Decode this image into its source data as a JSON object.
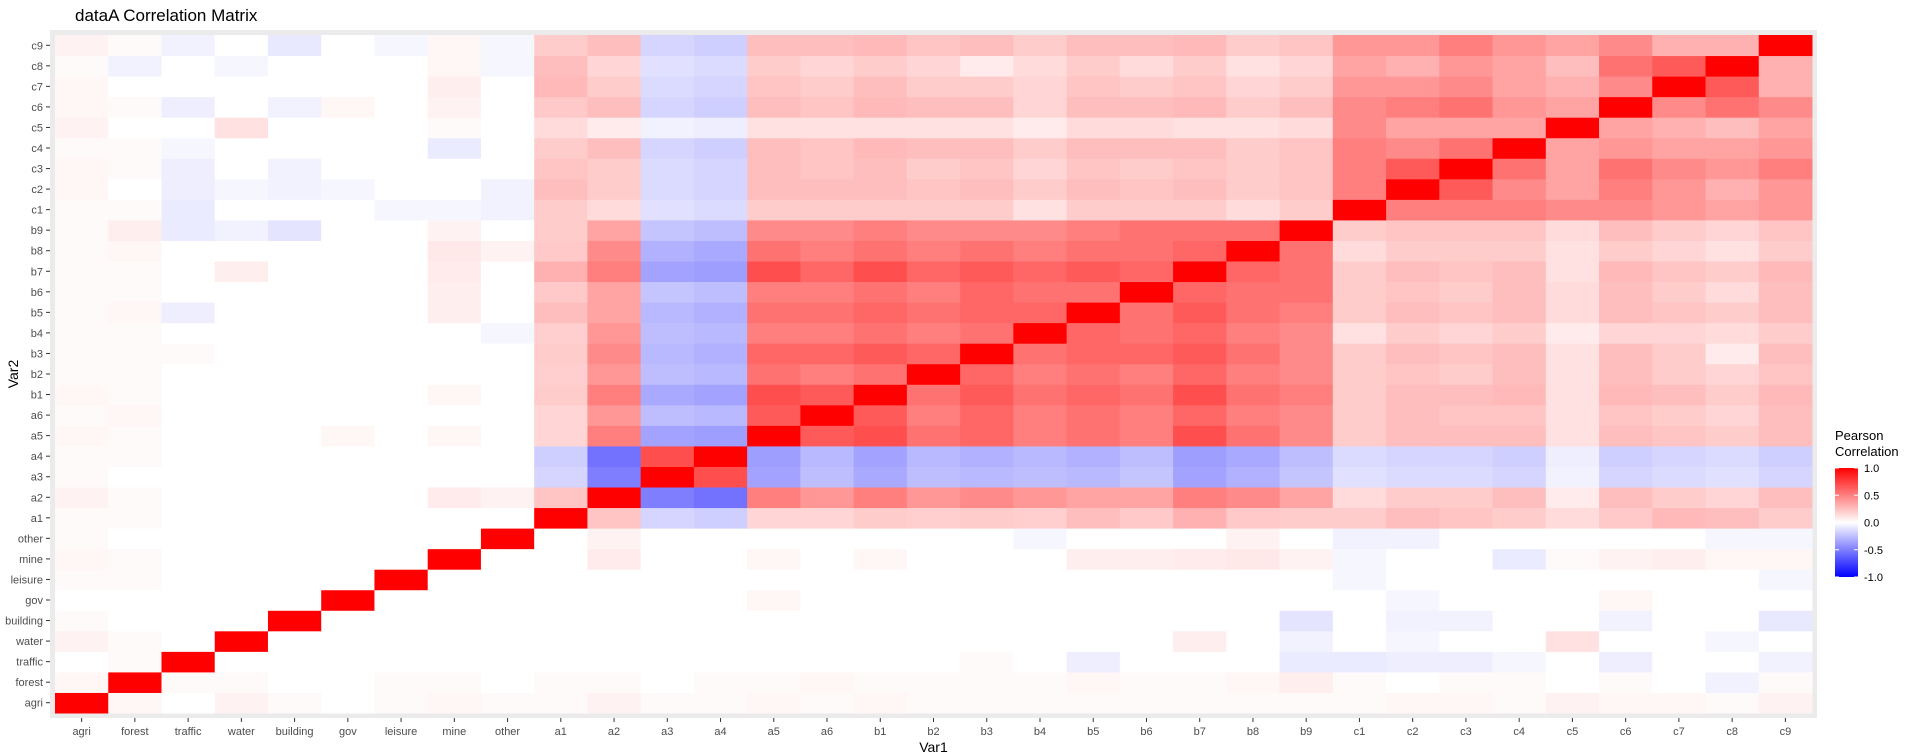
{
  "chart_data": {
    "type": "heatmap",
    "title": "dataA Correlation Matrix",
    "xlabel": "Var1",
    "ylabel": "Var2",
    "labels": [
      "agri",
      "forest",
      "traffic",
      "water",
      "building",
      "gov",
      "leisure",
      "mine",
      "other",
      "a1",
      "a2",
      "a3",
      "a4",
      "a5",
      "a6",
      "b1",
      "b2",
      "b3",
      "b4",
      "b5",
      "b6",
      "b7",
      "b8",
      "b9",
      "c1",
      "c2",
      "c3",
      "c4",
      "c5",
      "c6",
      "c7",
      "c8",
      "c9"
    ],
    "legend": {
      "title_lines": [
        "Pearson",
        "Correlation"
      ],
      "ticks": [
        1.0,
        0.5,
        0.0,
        -0.5,
        -1.0
      ],
      "tick_labels": [
        "1.0",
        "0.5",
        "0.0",
        "-0.5",
        "-1.0"
      ],
      "low_color": "#0000ff",
      "mid_color": "#ffffff",
      "high_color": "#ff0000",
      "limits": [
        -1,
        1
      ]
    },
    "background_color": "#ebebeb",
    "grid": true,
    "matrix": [
      [
        1.0,
        0.02,
        0.0,
        0.03,
        0.01,
        0.0,
        0.01,
        0.02,
        0.01,
        0.01,
        0.03,
        0.01,
        0.01,
        0.02,
        0.01,
        0.02,
        0.01,
        0.01,
        0.01,
        0.01,
        0.01,
        0.01,
        0.01,
        0.01,
        0.01,
        0.02,
        0.02,
        0.01,
        0.03,
        0.02,
        0.02,
        0.01,
        0.03
      ],
      [
        0.02,
        1.0,
        0.01,
        0.01,
        0.0,
        0.0,
        0.01,
        0.01,
        0.0,
        0.01,
        0.01,
        0.0,
        0.01,
        0.01,
        0.02,
        0.01,
        0.01,
        0.01,
        0.01,
        0.02,
        0.01,
        0.01,
        0.02,
        0.04,
        0.01,
        0.0,
        0.01,
        0.01,
        0.0,
        0.01,
        0.0,
        -0.03,
        0.01
      ],
      [
        0.0,
        0.01,
        1.0,
        0.0,
        0.0,
        0.0,
        0.0,
        0.0,
        0.0,
        0.0,
        0.0,
        0.0,
        0.0,
        0.0,
        0.0,
        0.0,
        0.0,
        0.01,
        0.0,
        -0.04,
        0.0,
        0.0,
        0.0,
        -0.05,
        -0.05,
        -0.04,
        -0.04,
        -0.02,
        0.0,
        -0.04,
        0.0,
        0.0,
        -0.03
      ],
      [
        0.03,
        0.01,
        0.0,
        1.0,
        0.0,
        0.0,
        0.0,
        0.0,
        0.0,
        0.0,
        0.0,
        0.0,
        0.0,
        0.0,
        0.0,
        0.0,
        0.0,
        0.0,
        0.0,
        0.0,
        0.0,
        0.04,
        0.0,
        -0.03,
        0.0,
        -0.02,
        0.0,
        0.0,
        0.08,
        0.0,
        0.0,
        -0.02,
        0.0
      ],
      [
        0.01,
        0.0,
        0.0,
        0.0,
        1.0,
        0.0,
        0.0,
        0.0,
        0.0,
        0.0,
        0.0,
        0.0,
        0.0,
        0.0,
        0.0,
        0.0,
        0.0,
        0.0,
        0.0,
        0.0,
        0.0,
        0.0,
        0.0,
        -0.07,
        0.0,
        -0.03,
        -0.03,
        0.0,
        0.0,
        -0.03,
        0.0,
        0.0,
        -0.06
      ],
      [
        0.0,
        0.0,
        0.0,
        0.0,
        0.0,
        1.0,
        0.0,
        0.0,
        0.0,
        0.0,
        0.0,
        0.0,
        0.0,
        0.02,
        0.0,
        0.0,
        0.0,
        0.0,
        0.0,
        0.0,
        0.0,
        0.0,
        0.0,
        0.0,
        0.0,
        -0.02,
        0.0,
        0.0,
        0.0,
        0.02,
        0.0,
        0.0,
        0.0
      ],
      [
        0.01,
        0.01,
        0.0,
        0.0,
        0.0,
        0.0,
        1.0,
        0.0,
        0.0,
        0.0,
        0.0,
        0.0,
        0.0,
        0.0,
        0.0,
        0.0,
        0.0,
        0.0,
        0.0,
        0.0,
        0.0,
        0.0,
        0.0,
        0.0,
        -0.02,
        0.0,
        0.0,
        0.0,
        0.0,
        0.0,
        0.0,
        0.0,
        -0.02
      ],
      [
        0.02,
        0.01,
        0.0,
        0.0,
        0.0,
        0.0,
        0.0,
        1.0,
        0.0,
        0.0,
        0.05,
        0.0,
        0.0,
        0.02,
        0.0,
        0.02,
        0.0,
        0.0,
        0.0,
        0.04,
        0.04,
        0.05,
        0.06,
        0.03,
        -0.02,
        0.0,
        0.0,
        -0.05,
        0.01,
        0.03,
        0.04,
        0.02,
        0.02
      ],
      [
        0.01,
        0.0,
        0.0,
        0.0,
        0.0,
        0.0,
        0.0,
        0.0,
        1.0,
        0.0,
        0.03,
        0.0,
        0.0,
        0.0,
        0.0,
        0.0,
        0.0,
        0.0,
        -0.02,
        0.0,
        0.0,
        0.0,
        0.03,
        0.0,
        -0.03,
        -0.03,
        0.0,
        0.0,
        0.0,
        0.0,
        0.0,
        -0.02,
        -0.02
      ],
      [
        0.01,
        0.01,
        0.0,
        0.0,
        0.0,
        0.0,
        0.0,
        0.0,
        0.0,
        1.0,
        0.18,
        -0.12,
        -0.14,
        0.12,
        0.12,
        0.15,
        0.14,
        0.15,
        0.14,
        0.2,
        0.16,
        0.25,
        0.16,
        0.15,
        0.15,
        0.2,
        0.18,
        0.15,
        0.1,
        0.16,
        0.22,
        0.2,
        0.15
      ],
      [
        0.03,
        0.01,
        0.0,
        0.0,
        0.0,
        0.0,
        0.0,
        0.05,
        0.03,
        0.18,
        1.0,
        -0.45,
        -0.5,
        0.45,
        0.35,
        0.45,
        0.35,
        0.4,
        0.35,
        0.3,
        0.3,
        0.45,
        0.4,
        0.3,
        0.1,
        0.15,
        0.15,
        0.2,
        0.05,
        0.2,
        0.15,
        0.12,
        0.2
      ],
      [
        0.01,
        0.0,
        0.0,
        0.0,
        0.0,
        0.0,
        0.0,
        0.0,
        0.0,
        -0.12,
        -0.45,
        1.0,
        0.65,
        -0.3,
        -0.2,
        -0.28,
        -0.2,
        -0.22,
        -0.2,
        -0.22,
        -0.18,
        -0.3,
        -0.25,
        -0.18,
        -0.08,
        -0.1,
        -0.1,
        -0.12,
        -0.03,
        -0.12,
        -0.1,
        -0.08,
        -0.12
      ],
      [
        0.01,
        0.01,
        0.0,
        0.0,
        0.0,
        0.0,
        0.0,
        0.0,
        0.0,
        -0.14,
        -0.5,
        0.65,
        1.0,
        -0.32,
        -0.22,
        -0.3,
        -0.22,
        -0.25,
        -0.22,
        -0.25,
        -0.2,
        -0.32,
        -0.28,
        -0.2,
        -0.1,
        -0.12,
        -0.12,
        -0.14,
        -0.04,
        -0.14,
        -0.12,
        -0.1,
        -0.14
      ],
      [
        0.02,
        0.01,
        0.0,
        0.0,
        0.0,
        0.02,
        0.0,
        0.02,
        0.0,
        0.12,
        0.45,
        -0.3,
        -0.32,
        1.0,
        0.6,
        0.65,
        0.5,
        0.55,
        0.45,
        0.5,
        0.45,
        0.65,
        0.5,
        0.4,
        0.15,
        0.2,
        0.2,
        0.2,
        0.08,
        0.2,
        0.18,
        0.15,
        0.2
      ],
      [
        0.01,
        0.02,
        0.0,
        0.0,
        0.0,
        0.0,
        0.0,
        0.0,
        0.0,
        0.12,
        0.35,
        -0.2,
        -0.22,
        0.6,
        1.0,
        0.6,
        0.45,
        0.55,
        0.45,
        0.5,
        0.45,
        0.55,
        0.45,
        0.4,
        0.15,
        0.2,
        0.18,
        0.18,
        0.08,
        0.18,
        0.15,
        0.12,
        0.2
      ],
      [
        0.02,
        0.01,
        0.0,
        0.0,
        0.0,
        0.0,
        0.0,
        0.02,
        0.0,
        0.15,
        0.45,
        -0.28,
        -0.3,
        0.65,
        0.6,
        1.0,
        0.5,
        0.6,
        0.5,
        0.55,
        0.5,
        0.65,
        0.5,
        0.45,
        0.15,
        0.2,
        0.2,
        0.22,
        0.08,
        0.22,
        0.2,
        0.15,
        0.22
      ],
      [
        0.01,
        0.01,
        0.0,
        0.0,
        0.0,
        0.0,
        0.0,
        0.0,
        0.0,
        0.14,
        0.35,
        -0.2,
        -0.22,
        0.5,
        0.45,
        0.5,
        1.0,
        0.55,
        0.45,
        0.5,
        0.45,
        0.55,
        0.45,
        0.4,
        0.15,
        0.18,
        0.15,
        0.2,
        0.08,
        0.2,
        0.15,
        0.12,
        0.18
      ],
      [
        0.01,
        0.01,
        0.01,
        0.0,
        0.0,
        0.0,
        0.0,
        0.0,
        0.0,
        0.15,
        0.4,
        -0.22,
        -0.25,
        0.55,
        0.55,
        0.6,
        0.55,
        1.0,
        0.5,
        0.55,
        0.55,
        0.6,
        0.5,
        0.4,
        0.15,
        0.2,
        0.18,
        0.2,
        0.08,
        0.2,
        0.15,
        0.05,
        0.2
      ],
      [
        0.01,
        0.01,
        0.0,
        0.0,
        0.0,
        0.0,
        0.0,
        0.0,
        -0.02,
        0.14,
        0.35,
        -0.2,
        -0.22,
        0.45,
        0.45,
        0.5,
        0.45,
        0.5,
        1.0,
        0.55,
        0.5,
        0.55,
        0.45,
        0.4,
        0.08,
        0.15,
        0.12,
        0.15,
        0.05,
        0.12,
        0.12,
        0.1,
        0.15
      ],
      [
        0.01,
        0.02,
        -0.04,
        0.0,
        0.0,
        0.0,
        0.0,
        0.04,
        0.0,
        0.2,
        0.3,
        -0.22,
        -0.25,
        0.5,
        0.5,
        0.55,
        0.5,
        0.55,
        0.55,
        1.0,
        0.5,
        0.6,
        0.5,
        0.45,
        0.15,
        0.2,
        0.18,
        0.2,
        0.1,
        0.2,
        0.18,
        0.15,
        0.2
      ],
      [
        0.01,
        0.01,
        0.0,
        0.0,
        0.0,
        0.0,
        0.0,
        0.04,
        0.0,
        0.16,
        0.3,
        -0.18,
        -0.2,
        0.45,
        0.45,
        0.5,
        0.45,
        0.55,
        0.5,
        0.5,
        1.0,
        0.55,
        0.5,
        0.5,
        0.15,
        0.18,
        0.15,
        0.2,
        0.1,
        0.2,
        0.15,
        0.1,
        0.2
      ],
      [
        0.01,
        0.01,
        0.0,
        0.04,
        0.0,
        0.0,
        0.0,
        0.05,
        0.0,
        0.25,
        0.45,
        -0.3,
        -0.32,
        0.65,
        0.55,
        0.65,
        0.55,
        0.6,
        0.55,
        0.6,
        0.55,
        1.0,
        0.55,
        0.5,
        0.15,
        0.2,
        0.18,
        0.2,
        0.08,
        0.22,
        0.18,
        0.15,
        0.22
      ],
      [
        0.01,
        0.02,
        0.0,
        0.0,
        0.0,
        0.0,
        0.0,
        0.06,
        0.03,
        0.16,
        0.4,
        -0.25,
        -0.28,
        0.5,
        0.45,
        0.5,
        0.45,
        0.5,
        0.45,
        0.5,
        0.5,
        0.55,
        1.0,
        0.5,
        0.1,
        0.15,
        0.15,
        0.15,
        0.08,
        0.15,
        0.12,
        0.08,
        0.15
      ],
      [
        0.01,
        0.04,
        -0.05,
        -0.03,
        -0.07,
        0.0,
        0.0,
        0.03,
        0.0,
        0.15,
        0.3,
        -0.18,
        -0.2,
        0.4,
        0.4,
        0.45,
        0.4,
        0.4,
        0.4,
        0.45,
        0.5,
        0.5,
        0.5,
        1.0,
        0.15,
        0.18,
        0.18,
        0.18,
        0.1,
        0.2,
        0.15,
        0.12,
        0.18
      ],
      [
        0.01,
        0.01,
        -0.05,
        0.0,
        0.0,
        0.0,
        -0.02,
        -0.02,
        -0.03,
        0.15,
        0.1,
        -0.08,
        -0.1,
        0.15,
        0.15,
        0.15,
        0.15,
        0.15,
        0.08,
        0.15,
        0.15,
        0.15,
        0.1,
        0.15,
        1.0,
        0.45,
        0.45,
        0.45,
        0.4,
        0.4,
        0.35,
        0.3,
        0.35
      ],
      [
        0.02,
        0.0,
        -0.04,
        -0.02,
        -0.03,
        -0.02,
        0.0,
        0.0,
        -0.03,
        0.2,
        0.15,
        -0.1,
        -0.12,
        0.2,
        0.2,
        0.2,
        0.18,
        0.2,
        0.15,
        0.2,
        0.18,
        0.2,
        0.15,
        0.18,
        0.45,
        1.0,
        0.6,
        0.4,
        0.3,
        0.45,
        0.35,
        0.25,
        0.35
      ],
      [
        0.02,
        0.01,
        -0.04,
        0.0,
        -0.03,
        0.0,
        0.0,
        0.0,
        0.0,
        0.18,
        0.15,
        -0.1,
        -0.12,
        0.2,
        0.18,
        0.2,
        0.15,
        0.18,
        0.12,
        0.18,
        0.15,
        0.18,
        0.15,
        0.18,
        0.45,
        0.6,
        1.0,
        0.5,
        0.3,
        0.5,
        0.4,
        0.35,
        0.45
      ],
      [
        0.01,
        0.01,
        -0.02,
        0.0,
        0.0,
        0.0,
        0.0,
        -0.05,
        0.0,
        0.15,
        0.2,
        -0.12,
        -0.14,
        0.2,
        0.18,
        0.22,
        0.2,
        0.2,
        0.15,
        0.2,
        0.2,
        0.2,
        0.15,
        0.18,
        0.45,
        0.4,
        0.5,
        1.0,
        0.3,
        0.35,
        0.3,
        0.3,
        0.35
      ],
      [
        0.03,
        0.0,
        0.0,
        0.08,
        0.0,
        0.0,
        0.0,
        0.01,
        0.0,
        0.1,
        0.05,
        -0.03,
        -0.04,
        0.08,
        0.08,
        0.08,
        0.08,
        0.08,
        0.05,
        0.1,
        0.1,
        0.08,
        0.08,
        0.1,
        0.4,
        0.3,
        0.3,
        0.3,
        1.0,
        0.3,
        0.25,
        0.2,
        0.3
      ],
      [
        0.02,
        0.01,
        -0.04,
        0.0,
        -0.03,
        0.02,
        0.0,
        0.03,
        0.0,
        0.16,
        0.2,
        -0.12,
        -0.14,
        0.2,
        0.18,
        0.22,
        0.2,
        0.2,
        0.12,
        0.2,
        0.2,
        0.22,
        0.15,
        0.2,
        0.4,
        0.45,
        0.5,
        0.35,
        0.3,
        1.0,
        0.4,
        0.5,
        0.4
      ],
      [
        0.02,
        0.0,
        0.0,
        0.0,
        0.0,
        0.0,
        0.0,
        0.04,
        0.0,
        0.22,
        0.15,
        -0.1,
        -0.12,
        0.18,
        0.15,
        0.2,
        0.15,
        0.15,
        0.12,
        0.18,
        0.15,
        0.18,
        0.12,
        0.15,
        0.35,
        0.35,
        0.4,
        0.3,
        0.25,
        0.4,
        1.0,
        0.6,
        0.25
      ],
      [
        0.01,
        -0.03,
        0.0,
        -0.02,
        0.0,
        0.0,
        0.0,
        0.02,
        -0.02,
        0.2,
        0.12,
        -0.08,
        -0.1,
        0.15,
        0.12,
        0.15,
        0.12,
        0.05,
        0.1,
        0.15,
        0.1,
        0.15,
        0.08,
        0.12,
        0.3,
        0.25,
        0.35,
        0.3,
        0.2,
        0.5,
        0.6,
        1.0,
        0.25
      ],
      [
        0.03,
        0.01,
        -0.03,
        0.0,
        -0.06,
        0.0,
        -0.02,
        0.02,
        -0.02,
        0.15,
        0.2,
        -0.12,
        -0.14,
        0.2,
        0.2,
        0.22,
        0.18,
        0.2,
        0.15,
        0.2,
        0.2,
        0.22,
        0.15,
        0.18,
        0.35,
        0.35,
        0.45,
        0.35,
        0.3,
        0.4,
        0.25,
        0.25,
        1.0
      ]
    ]
  }
}
